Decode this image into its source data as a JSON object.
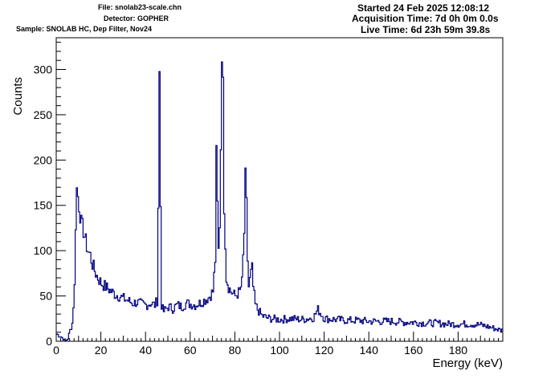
{
  "header": {
    "file": "File: snolab23-scale.chn",
    "detector": "Detector: GOPHER",
    "sample": "Sample: SNOLAB HC, Dep Filter, Nov24",
    "started": "Started 24 Feb 2025 12:08:12",
    "acquisition": "Acquisition Time: 7d 0h 0m 0.0s",
    "live": "Live Time: 6d 23h 59m 39.8s"
  },
  "chart_data": {
    "type": "line",
    "title": "",
    "xlabel": "Energy (keV)",
    "ylabel": "Counts",
    "xlim": [
      0,
      200
    ],
    "ylim": [
      0,
      335
    ],
    "x_ticks": [
      0,
      20,
      40,
      60,
      80,
      100,
      120,
      140,
      160,
      180
    ],
    "y_ticks": [
      0,
      50,
      100,
      150,
      200,
      250,
      300
    ],
    "line_color": "#000080",
    "grid": false,
    "series": [
      {
        "name": "",
        "x": [
          0,
          2,
          4,
          5,
          6,
          7,
          8,
          8.5,
          9,
          9.5,
          10,
          11,
          12,
          13,
          14,
          15,
          16,
          17,
          18,
          19,
          20,
          22,
          24,
          26,
          28,
          30,
          32,
          34,
          36,
          38,
          40,
          42,
          44,
          45,
          45.5,
          46,
          46.5,
          47,
          47.5,
          48,
          50,
          52,
          54,
          56,
          58,
          60,
          62,
          64,
          66,
          68,
          70,
          71,
          71.5,
          72,
          72.5,
          73,
          73.5,
          74,
          74.5,
          75,
          75.5,
          76,
          77,
          78,
          80,
          82,
          83,
          84,
          84.5,
          85,
          85.5,
          86,
          87,
          87.5,
          88,
          89,
          90,
          92,
          94,
          96,
          100,
          105,
          110,
          115,
          117,
          120,
          125,
          130,
          135,
          140,
          145,
          150,
          155,
          160,
          165,
          170,
          175,
          180,
          185,
          190,
          195,
          199
        ],
        "y": [
          8,
          5,
          0,
          3,
          12,
          20,
          60,
          130,
          168,
          160,
          150,
          130,
          122,
          110,
          100,
          95,
          85,
          78,
          72,
          68,
          64,
          60,
          56,
          52,
          50,
          47,
          45,
          42,
          43,
          41,
          40,
          42,
          40,
          45,
          150,
          295,
          150,
          40,
          35,
          33,
          38,
          36,
          40,
          38,
          42,
          41,
          40,
          42,
          45,
          48,
          55,
          90,
          205,
          150,
          100,
          130,
          215,
          322,
          280,
          150,
          110,
          70,
          60,
          55,
          50,
          55,
          65,
          120,
          180,
          150,
          90,
          60,
          75,
          80,
          60,
          40,
          35,
          28,
          26,
          25,
          24,
          25,
          24,
          26,
          35,
          25,
          24,
          23,
          23,
          22,
          22,
          22,
          21,
          21,
          20,
          20,
          19,
          19,
          19,
          18,
          15,
          12
        ]
      }
    ]
  }
}
